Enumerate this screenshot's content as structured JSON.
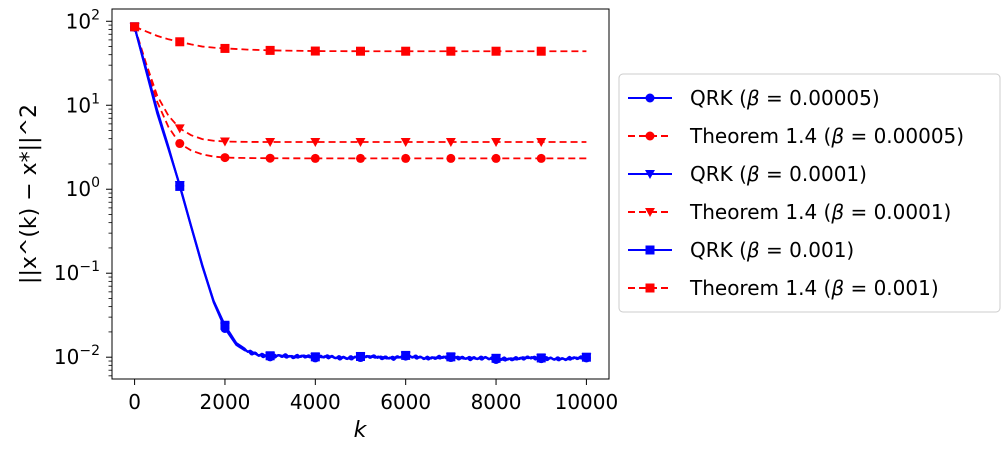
{
  "chart_data": {
    "type": "line",
    "xlabel": "k",
    "ylabel": "||x^(k) − x*||^2",
    "xlim": [
      -500,
      10500
    ],
    "ylim": [
      0.0055,
      140
    ],
    "yscale": "log",
    "xticks": [
      0,
      2000,
      4000,
      6000,
      8000,
      10000
    ],
    "xtick_labels": [
      "0",
      "2000",
      "4000",
      "6000",
      "8000",
      "10000"
    ],
    "yticks": [
      0.01,
      0.1,
      1,
      10,
      100
    ],
    "ytick_labels": [
      {
        "base": "10",
        "exp": "−2"
      },
      {
        "base": "10",
        "exp": "−1"
      },
      {
        "base": "10",
        "exp": "0"
      },
      {
        "base": "10",
        "exp": "1"
      },
      {
        "base": "10",
        "exp": "2"
      }
    ],
    "grid": false,
    "legend_placement": "right, outside plot",
    "colors": {
      "blue": "#0000ff",
      "red": "#ff0000"
    },
    "series": [
      {
        "name_prefix": "QRK (",
        "beta_value": "0.00005",
        "color": "#0000ff",
        "dash": "solid",
        "marker": "circle",
        "markers_at": [
          0,
          1000,
          2000,
          3000,
          4000,
          5000,
          6000,
          7000,
          8000,
          9000,
          10000
        ],
        "x": [
          0,
          250,
          500,
          750,
          1000,
          1250,
          1500,
          1750,
          2000,
          2250,
          2500,
          2750,
          3000,
          3250,
          3500,
          3750,
          4000,
          4250,
          4500,
          4750,
          5000,
          5250,
          5500,
          5750,
          6000,
          6250,
          6500,
          6750,
          7000,
          7250,
          7500,
          7750,
          8000,
          8250,
          8500,
          8750,
          9000,
          9250,
          9500,
          9750,
          10000
        ],
        "values": [
          85,
          26,
          8,
          3,
          1.1,
          0.36,
          0.12,
          0.045,
          0.022,
          0.014,
          0.0115,
          0.0105,
          0.0101,
          0.0103,
          0.0099,
          0.0102,
          0.0098,
          0.0101,
          0.0097,
          0.0096,
          0.0099,
          0.0101,
          0.0097,
          0.0096,
          0.0103,
          0.0099,
          0.0096,
          0.0098,
          0.0099,
          0.0096,
          0.0095,
          0.0097,
          0.0094,
          0.0093,
          0.0095,
          0.0098,
          0.0096,
          0.0095,
          0.0094,
          0.0097,
          0.0098
        ]
      },
      {
        "name_prefix": "Theorem 1.4 (",
        "beta_value": "0.00005",
        "color": "#ff0000",
        "dash": "dashed",
        "marker": "circle",
        "markers_at": [
          0,
          1000,
          2000,
          3000,
          4000,
          5000,
          6000,
          7000,
          8000,
          9000
        ],
        "x": [
          0,
          250,
          500,
          750,
          1000,
          1250,
          1500,
          1750,
          2000,
          2500,
          3000,
          4000,
          5000,
          6000,
          7000,
          8000,
          9000,
          10000
        ],
        "values": [
          85,
          30,
          11,
          5.5,
          3.5,
          2.9,
          2.6,
          2.45,
          2.38,
          2.35,
          2.34,
          2.33,
          2.33,
          2.33,
          2.33,
          2.33,
          2.33,
          2.33
        ]
      },
      {
        "name_prefix": "QRK (",
        "beta_value": "0.0001",
        "color": "#0000ff",
        "dash": "solid",
        "marker": "triangle-down",
        "markers_at": [
          0,
          1000,
          2000,
          3000,
          4000,
          5000,
          6000,
          7000,
          8000,
          9000,
          10000
        ],
        "x": [
          0,
          250,
          500,
          750,
          1000,
          1250,
          1500,
          1750,
          2000,
          2250,
          2500,
          2750,
          3000,
          3250,
          3500,
          3750,
          4000,
          4250,
          4500,
          4750,
          5000,
          5250,
          5500,
          5750,
          6000,
          6250,
          6500,
          6750,
          7000,
          7250,
          7500,
          7750,
          8000,
          8250,
          8500,
          8750,
          9000,
          9250,
          9500,
          9750,
          10000
        ],
        "values": [
          85,
          27,
          8.5,
          3.1,
          1.12,
          0.37,
          0.125,
          0.046,
          0.023,
          0.0145,
          0.0118,
          0.0106,
          0.0102,
          0.0104,
          0.0101,
          0.0103,
          0.01,
          0.0102,
          0.0099,
          0.0098,
          0.0101,
          0.0102,
          0.0099,
          0.0098,
          0.0104,
          0.01,
          0.0097,
          0.01,
          0.01,
          0.0098,
          0.0097,
          0.0098,
          0.0096,
          0.0095,
          0.0097,
          0.0099,
          0.0097,
          0.0096,
          0.0095,
          0.0098,
          0.0099
        ]
      },
      {
        "name_prefix": "Theorem 1.4 (",
        "beta_value": "0.0001",
        "color": "#ff0000",
        "dash": "dashed",
        "marker": "triangle-down",
        "markers_at": [
          0,
          1000,
          2000,
          3000,
          4000,
          5000,
          6000,
          7000,
          8000,
          9000
        ],
        "x": [
          0,
          250,
          500,
          750,
          1000,
          1250,
          1500,
          1750,
          2000,
          2500,
          3000,
          4000,
          5000,
          6000,
          7000,
          8000,
          9000,
          10000
        ],
        "values": [
          86,
          32,
          13,
          7.5,
          5.3,
          4.4,
          3.95,
          3.78,
          3.7,
          3.66,
          3.65,
          3.65,
          3.65,
          3.65,
          3.65,
          3.65,
          3.65,
          3.65
        ]
      },
      {
        "name_prefix": "QRK (",
        "beta_value": "0.001",
        "color": "#0000ff",
        "dash": "solid",
        "marker": "square",
        "markers_at": [
          0,
          1000,
          2000,
          3000,
          4000,
          5000,
          6000,
          7000,
          8000,
          9000,
          10000
        ],
        "x": [
          0,
          250,
          500,
          750,
          1000,
          1250,
          1500,
          1750,
          2000,
          2250,
          2500,
          2750,
          3000,
          3250,
          3500,
          3750,
          4000,
          4250,
          4500,
          4750,
          5000,
          5250,
          5500,
          5750,
          6000,
          6250,
          6500,
          6750,
          7000,
          7250,
          7500,
          7750,
          8000,
          8250,
          8500,
          8750,
          9000,
          9250,
          9500,
          9750,
          10000
        ],
        "values": [
          86,
          28,
          8.8,
          3.2,
          1.08,
          0.36,
          0.122,
          0.047,
          0.024,
          0.0148,
          0.012,
          0.0108,
          0.0104,
          0.0106,
          0.0103,
          0.0104,
          0.0101,
          0.0103,
          0.01,
          0.0099,
          0.0102,
          0.0103,
          0.01,
          0.0099,
          0.0105,
          0.0101,
          0.0098,
          0.0101,
          0.0101,
          0.0099,
          0.0098,
          0.0099,
          0.0097,
          0.0096,
          0.0098,
          0.01,
          0.0098,
          0.0097,
          0.0096,
          0.0099,
          0.01
        ]
      },
      {
        "name_prefix": "Theorem 1.4 (",
        "beta_value": "0.001",
        "color": "#ff0000",
        "dash": "dashed",
        "marker": "square",
        "markers_at": [
          0,
          1000,
          2000,
          3000,
          4000,
          5000,
          6000,
          7000,
          8000,
          9000
        ],
        "x": [
          0,
          250,
          500,
          750,
          1000,
          1250,
          1500,
          1750,
          2000,
          2500,
          3000,
          4000,
          5000,
          6000,
          7000,
          8000,
          9000,
          10000
        ],
        "values": [
          86,
          76,
          67,
          61,
          57,
          53,
          50,
          48.5,
          47.5,
          46,
          45,
          44.2,
          44,
          44,
          44,
          44,
          44,
          44
        ]
      }
    ]
  }
}
